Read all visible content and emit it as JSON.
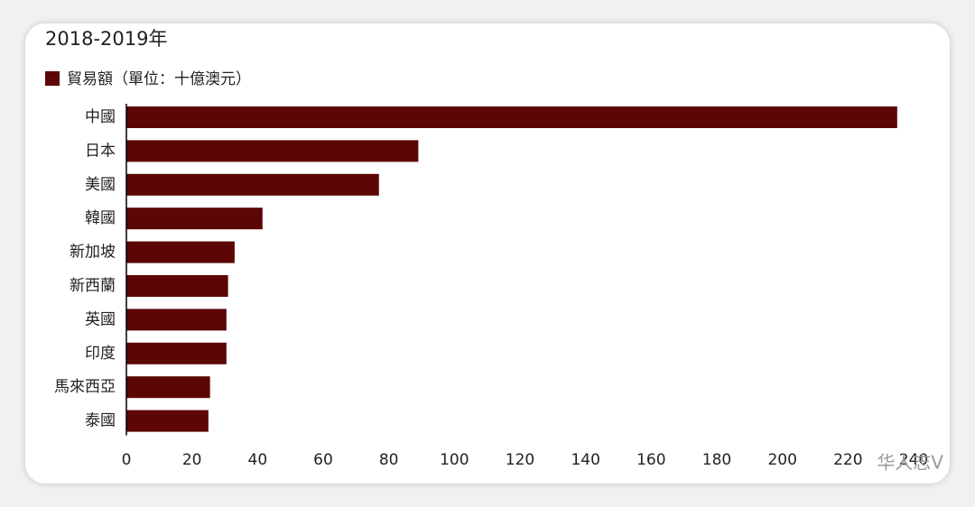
{
  "chart_data": {
    "type": "barh",
    "title": "2018-2019年",
    "categories": [
      "中國",
      "日本",
      "美國",
      "韓國",
      "新加坡",
      "新西蘭",
      "英國",
      "印度",
      "馬來西亞",
      "泰國"
    ],
    "series": [
      {
        "name": "貿易額（單位：十億澳元）",
        "color": "#5c0606",
        "values": [
          235,
          89,
          77,
          41.5,
          33,
          31,
          30.5,
          30.5,
          25.5,
          25
        ]
      }
    ],
    "xlim": [
      0,
      240
    ],
    "xticks": [
      0,
      20,
      40,
      60,
      80,
      100,
      120,
      140,
      160,
      180,
      200,
      220,
      240
    ],
    "watermark": "华人志V"
  }
}
